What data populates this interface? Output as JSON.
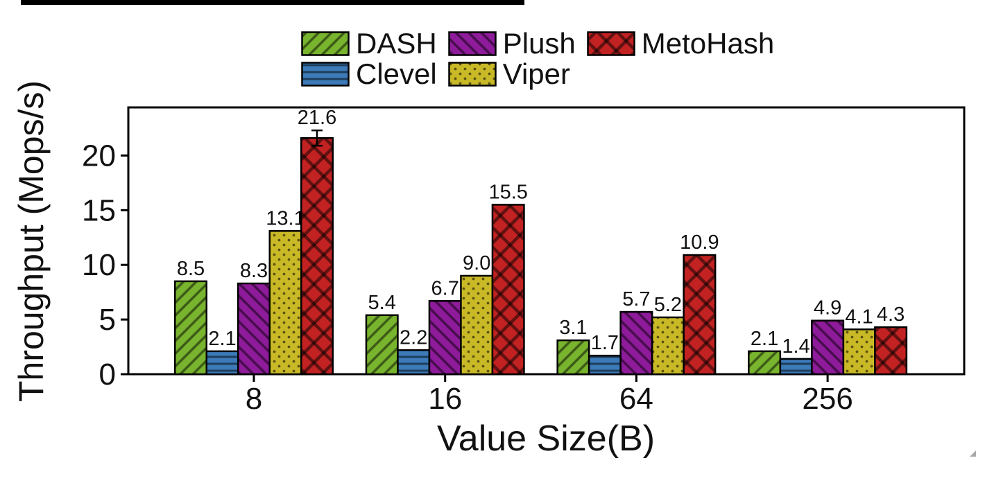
{
  "chart_data": {
    "type": "bar",
    "title": "",
    "xlabel": "Value Size(B)",
    "ylabel": "Throughput (Mops/s)",
    "categories": [
      "8",
      "16",
      "64",
      "256"
    ],
    "series": [
      {
        "name": "DASH",
        "color": "#79b42e",
        "hatch": "forward-diagonal",
        "values": [
          8.5,
          5.4,
          3.1,
          2.1
        ]
      },
      {
        "name": "Clevel",
        "color": "#3c7ab8",
        "hatch": "horizontal",
        "values": [
          2.1,
          2.2,
          1.7,
          1.4
        ]
      },
      {
        "name": "Plush",
        "color": "#8e1b9a",
        "hatch": "back-diagonal",
        "values": [
          8.3,
          6.7,
          5.7,
          4.9
        ]
      },
      {
        "name": "Viper",
        "color": "#c9b926",
        "hatch": "dots",
        "values": [
          13.1,
          9.0,
          5.2,
          4.1
        ]
      },
      {
        "name": "MetoHash",
        "color": "#c32222",
        "hatch": "cross-diagonal",
        "values": [
          21.6,
          15.5,
          10.9,
          4.3
        ]
      }
    ],
    "error_bars": [
      {
        "series": "MetoHash",
        "category": "8",
        "value": 0.7
      }
    ],
    "y_ticks": [
      0,
      5,
      10,
      15,
      20
    ],
    "ylim": [
      0,
      24.4
    ],
    "grid": false,
    "legend_position": "top-center",
    "bar_value_labels": true,
    "value_label_format": "one-decimal"
  },
  "colors": {
    "axis": "#000000",
    "text": "#111111",
    "background": "#ffffff",
    "hatch_overlay": "rgba(0,0,0,0.5)"
  }
}
